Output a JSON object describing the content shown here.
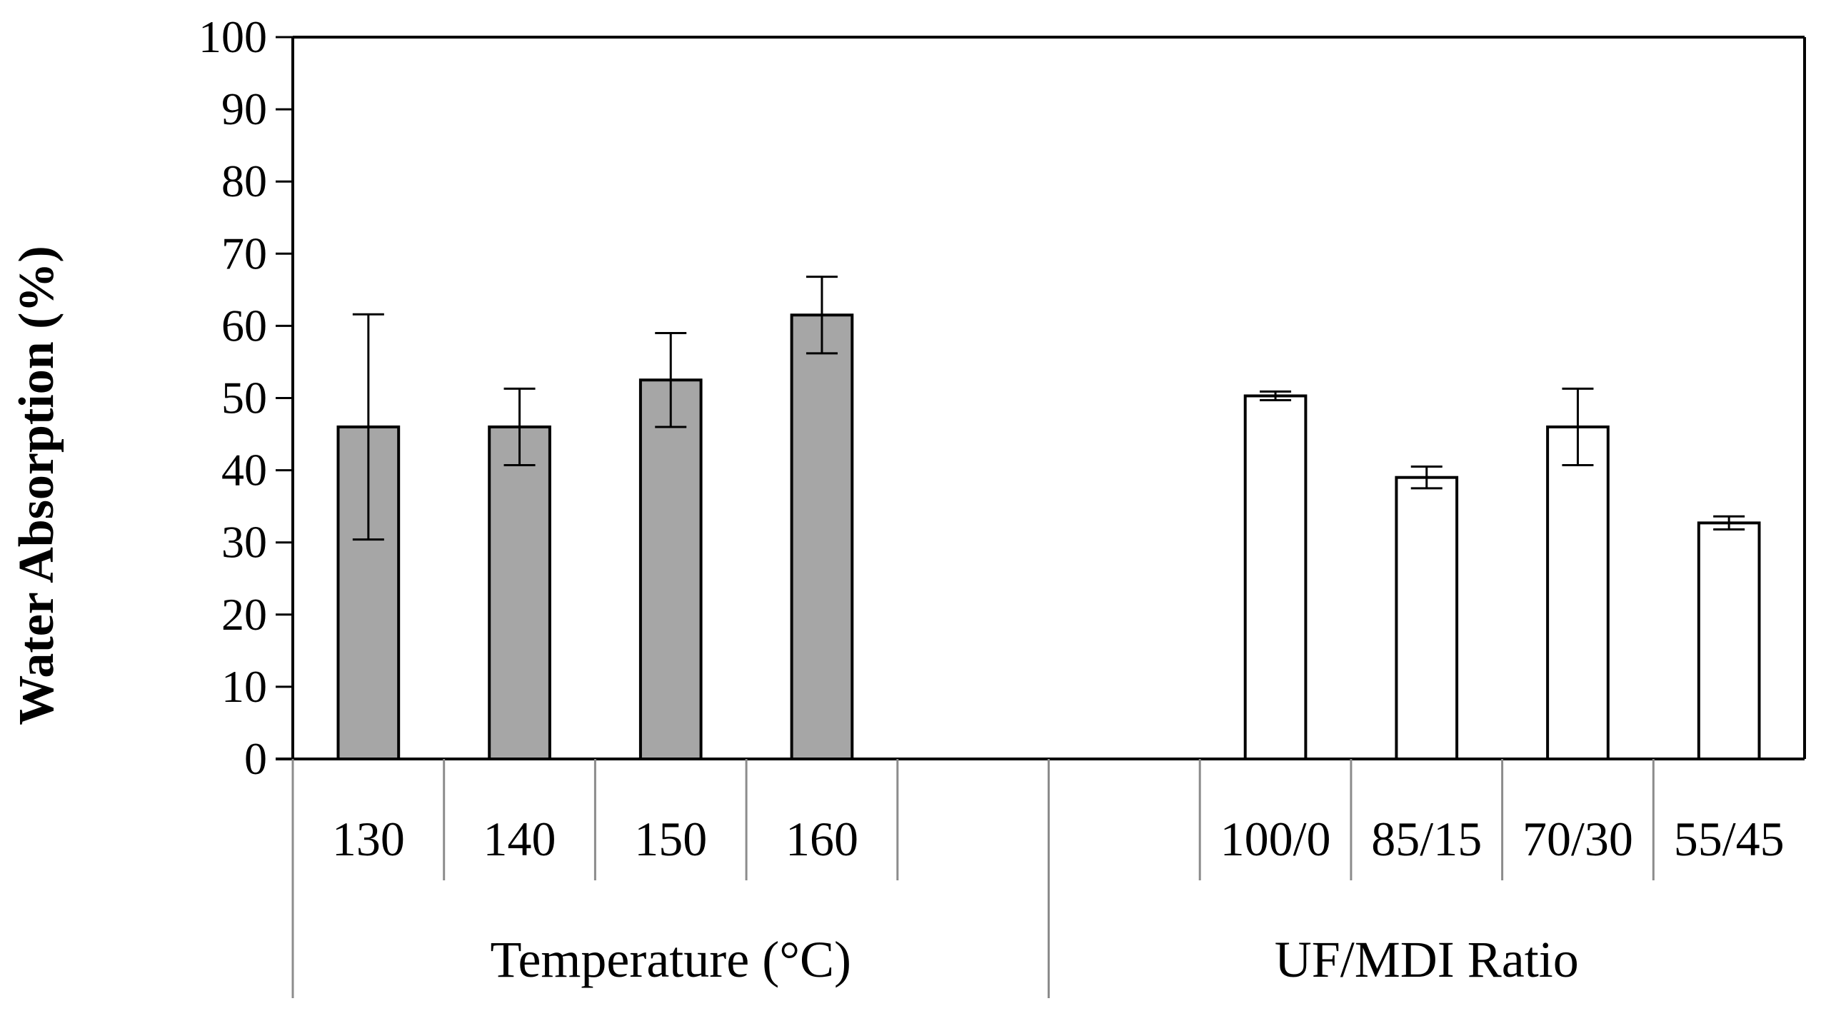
{
  "chart_data": {
    "type": "bar",
    "title": "",
    "ylabel": "Water Absorption (%)",
    "xlabel": "",
    "ylim": [
      0,
      100
    ],
    "ytick_step": 10,
    "yticks": [
      "0",
      "10",
      "20",
      "30",
      "40",
      "50",
      "60",
      "70",
      "80",
      "90",
      "100"
    ],
    "grid": false,
    "legend": "none",
    "groups": [
      {
        "name": "Temperature (°C)",
        "fill": "#a6a6a6",
        "categories": [
          "130",
          "140",
          "150",
          "160"
        ],
        "values": [
          46.0,
          46.0,
          52.5,
          61.5
        ],
        "errors": [
          15.6,
          5.3,
          6.5,
          5.3
        ]
      },
      {
        "name": "UF/MDI Ratio",
        "fill": "#ffffff",
        "categories": [
          "100/0",
          "85/15",
          "70/30",
          "55/45"
        ],
        "values": [
          50.3,
          39.0,
          46.0,
          32.7
        ],
        "errors": [
          0.6,
          1.5,
          5.3,
          0.9
        ]
      }
    ],
    "slots": [
      "130",
      "140",
      "150",
      "160",
      "",
      "",
      "100/0",
      "85/15",
      "70/30",
      "55/45"
    ],
    "bar_stroke": "#000000",
    "axis_color": "#000000",
    "divider_color": "#8c8c8c"
  }
}
